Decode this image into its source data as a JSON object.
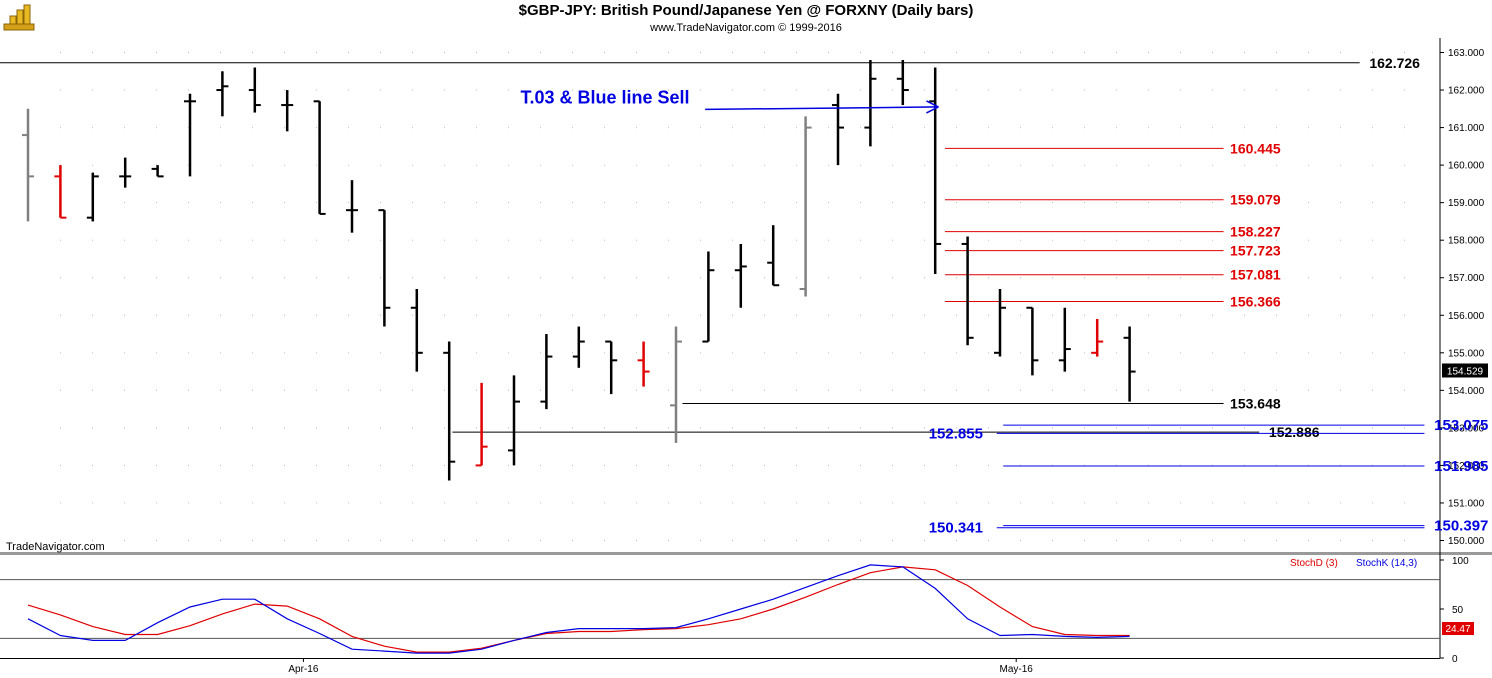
{
  "header": {
    "title": "$GBP-JPY:  British Pound/Japanese Yen @ FORXNY  (Daily bars)",
    "subtitle": "www.TradeNavigator.com © 1999-2016"
  },
  "watermark": "TradeNavigator.com",
  "colors": {
    "up_bar": "#000000",
    "down_bar_red": "#e00000",
    "neutral_bar": "#808080",
    "fib_red": "#e00000",
    "blue": "#0000e0",
    "stoch_d": "#e00000",
    "stoch_k": "#0000e0"
  },
  "chart_data": [
    {
      "type": "ohlc",
      "ylim": [
        149.8,
        163.3
      ],
      "y_ticks": [
        "163.000",
        "162.000",
        "161.000",
        "160.000",
        "159.000",
        "158.000",
        "157.000",
        "156.000",
        "155.000",
        "154.000",
        "153.000",
        "152.000",
        "151.000",
        "150.000"
      ],
      "x_labels": [
        {
          "label": "Apr-16",
          "bar": 8.5
        },
        {
          "label": "May-16",
          "bar": 30.5
        }
      ],
      "last_price": "154.529",
      "bars": [
        {
          "o": 160.8,
          "h": 161.5,
          "l": 158.5,
          "c": 159.7,
          "color": "gray"
        },
        {
          "o": 159.7,
          "h": 160.0,
          "l": 158.6,
          "c": 158.6,
          "color": "red"
        },
        {
          "o": 158.6,
          "h": 159.8,
          "l": 158.5,
          "c": 159.7,
          "color": "black"
        },
        {
          "o": 159.7,
          "h": 160.2,
          "l": 159.4,
          "c": 159.7,
          "color": "black"
        },
        {
          "o": 159.9,
          "h": 160.0,
          "l": 159.7,
          "c": 159.7,
          "color": "black"
        },
        {
          "o": 161.7,
          "h": 161.9,
          "l": 159.7,
          "c": 161.7,
          "color": "black"
        },
        {
          "o": 162.0,
          "h": 162.5,
          "l": 161.3,
          "c": 162.1,
          "color": "black"
        },
        {
          "o": 162.0,
          "h": 162.6,
          "l": 161.4,
          "c": 161.6,
          "color": "black"
        },
        {
          "o": 161.6,
          "h": 162.0,
          "l": 160.9,
          "c": 161.6,
          "color": "black"
        },
        {
          "o": 161.7,
          "h": 161.7,
          "l": 158.7,
          "c": 158.7,
          "color": "black"
        },
        {
          "o": 158.8,
          "h": 159.6,
          "l": 158.2,
          "c": 158.8,
          "color": "black"
        },
        {
          "o": 158.8,
          "h": 158.8,
          "l": 155.7,
          "c": 156.2,
          "color": "black"
        },
        {
          "o": 156.2,
          "h": 156.7,
          "l": 154.5,
          "c": 155.0,
          "color": "black"
        },
        {
          "o": 155.0,
          "h": 155.3,
          "l": 151.6,
          "c": 152.1,
          "color": "black"
        },
        {
          "o": 152.0,
          "h": 154.2,
          "l": 152.0,
          "c": 152.5,
          "color": "red"
        },
        {
          "o": 152.4,
          "h": 154.4,
          "l": 152.0,
          "c": 153.7,
          "color": "black"
        },
        {
          "o": 153.7,
          "h": 155.5,
          "l": 153.5,
          "c": 154.9,
          "color": "black"
        },
        {
          "o": 154.9,
          "h": 155.7,
          "l": 154.6,
          "c": 155.3,
          "color": "black"
        },
        {
          "o": 155.3,
          "h": 155.3,
          "l": 153.9,
          "c": 154.8,
          "color": "black"
        },
        {
          "o": 154.8,
          "h": 155.3,
          "l": 154.1,
          "c": 154.5,
          "color": "red"
        },
        {
          "o": 153.6,
          "h": 155.7,
          "l": 152.6,
          "c": 155.3,
          "color": "gray"
        },
        {
          "o": 155.3,
          "h": 157.7,
          "l": 155.3,
          "c": 157.2,
          "color": "black"
        },
        {
          "o": 157.2,
          "h": 157.9,
          "l": 156.2,
          "c": 157.3,
          "color": "black"
        },
        {
          "o": 157.4,
          "h": 158.4,
          "l": 156.8,
          "c": 156.8,
          "color": "black"
        },
        {
          "o": 156.7,
          "h": 161.3,
          "l": 156.5,
          "c": 161.0,
          "color": "gray"
        },
        {
          "o": 161.6,
          "h": 161.9,
          "l": 160.0,
          "c": 161.0,
          "color": "black"
        },
        {
          "o": 161.0,
          "h": 162.8,
          "l": 160.5,
          "c": 162.3,
          "color": "black"
        },
        {
          "o": 162.3,
          "h": 162.8,
          "l": 161.6,
          "c": 162.0,
          "color": "black"
        },
        {
          "o": 161.7,
          "h": 162.6,
          "l": 157.1,
          "c": 157.9,
          "color": "black"
        },
        {
          "o": 157.9,
          "h": 158.1,
          "l": 155.2,
          "c": 155.4,
          "color": "black"
        },
        {
          "o": 155.0,
          "h": 156.7,
          "l": 154.9,
          "c": 156.2,
          "color": "black"
        },
        {
          "o": 156.2,
          "h": 156.2,
          "l": 154.4,
          "c": 154.8,
          "color": "black"
        },
        {
          "o": 154.8,
          "h": 156.2,
          "l": 154.5,
          "c": 155.1,
          "color": "black"
        },
        {
          "o": 155.0,
          "h": 155.9,
          "l": 154.9,
          "c": 155.3,
          "color": "red"
        },
        {
          "o": 155.4,
          "h": 155.7,
          "l": 153.7,
          "c": 154.5,
          "color": "black"
        }
      ],
      "levels": [
        {
          "label": "162.726",
          "value": 162.726,
          "color": "black",
          "from_bar": -1,
          "to_bar": 41.1,
          "label_bar": 41.4
        },
        {
          "label": "160.445",
          "value": 160.445,
          "color": "red",
          "from_bar": 28.3,
          "to_bar": 36.9,
          "label_bar": 37.1
        },
        {
          "label": "159.079",
          "value": 159.079,
          "color": "red",
          "from_bar": 28.3,
          "to_bar": 36.9,
          "label_bar": 37.1
        },
        {
          "label": "158.227",
          "value": 158.227,
          "color": "red",
          "from_bar": 28.3,
          "to_bar": 36.9,
          "label_bar": 37.1
        },
        {
          "label": "157.723",
          "value": 157.723,
          "color": "red",
          "from_bar": 28.3,
          "to_bar": 36.9,
          "label_bar": 37.1
        },
        {
          "label": "157.081",
          "value": 157.081,
          "color": "red",
          "from_bar": 28.3,
          "to_bar": 36.9,
          "label_bar": 37.1
        },
        {
          "label": "156.366",
          "value": 156.366,
          "color": "red",
          "from_bar": 28.3,
          "to_bar": 36.9,
          "label_bar": 37.1
        },
        {
          "label": "153.648",
          "value": 153.648,
          "color": "black",
          "from_bar": 20.2,
          "to_bar": 36.9,
          "label_bar": 37.1
        },
        {
          "label": "152.886",
          "value": 152.886,
          "color": "black",
          "from_bar": 13.1,
          "to_bar": 38.0,
          "label_bar": 38.3
        },
        {
          "label": "153.075",
          "value": 153.075,
          "color": "blue",
          "from_bar": 30.1,
          "to_bar": 43.1,
          "label_bar": 43.4
        },
        {
          "label": "151.985",
          "value": 151.985,
          "color": "blue",
          "from_bar": 30.1,
          "to_bar": 43.1,
          "label_bar": 43.4
        },
        {
          "label": "150.397",
          "value": 150.397,
          "color": "blue",
          "from_bar": 30.1,
          "to_bar": 43.1,
          "label_bar": 43.4
        }
      ],
      "extra_lines": [
        {
          "value": 152.855,
          "color": "blue",
          "from_bar": 29.9,
          "to_bar": 43.1
        },
        {
          "value": 150.341,
          "color": "blue",
          "from_bar": 29.9,
          "to_bar": 43.1
        }
      ],
      "left_labels": [
        {
          "label": "152.855",
          "value": 152.855,
          "color": "blue",
          "bar": 27.8
        },
        {
          "label": "150.341",
          "value": 150.341,
          "color": "blue",
          "bar": 27.8
        }
      ],
      "annotation": {
        "text": "T.03 & Blue line Sell",
        "value": 161.75,
        "text_bar": 15.2,
        "arrow_from_bar": 20.9,
        "arrow_to_value": 161.55,
        "arrow_to_bar": 28.1
      }
    },
    {
      "type": "line",
      "ylim": [
        0,
        100
      ],
      "y_ticks": [
        "100",
        "50",
        "0"
      ],
      "ref_lines": [
        80,
        20
      ],
      "last_value": "24.47",
      "series": [
        {
          "name": "StochD (3)",
          "color": "red",
          "values": [
            54,
            44,
            32,
            24,
            24,
            33,
            45,
            55,
            53,
            40,
            22,
            12,
            6,
            6,
            10,
            18,
            25,
            27,
            27,
            29,
            30,
            34,
            40,
            50,
            62,
            75,
            87,
            93,
            90,
            74,
            52,
            32,
            24,
            23,
            23
          ]
        },
        {
          "name": "StochK (14,3)",
          "color": "blue",
          "values": [
            40,
            23,
            18,
            18,
            36,
            52,
            60,
            60,
            40,
            25,
            9,
            7,
            5,
            5,
            9,
            18,
            26,
            30,
            30,
            30,
            31,
            40,
            50,
            60,
            72,
            84,
            95,
            93,
            71,
            40,
            23,
            24,
            22,
            21,
            22
          ]
        }
      ]
    }
  ]
}
